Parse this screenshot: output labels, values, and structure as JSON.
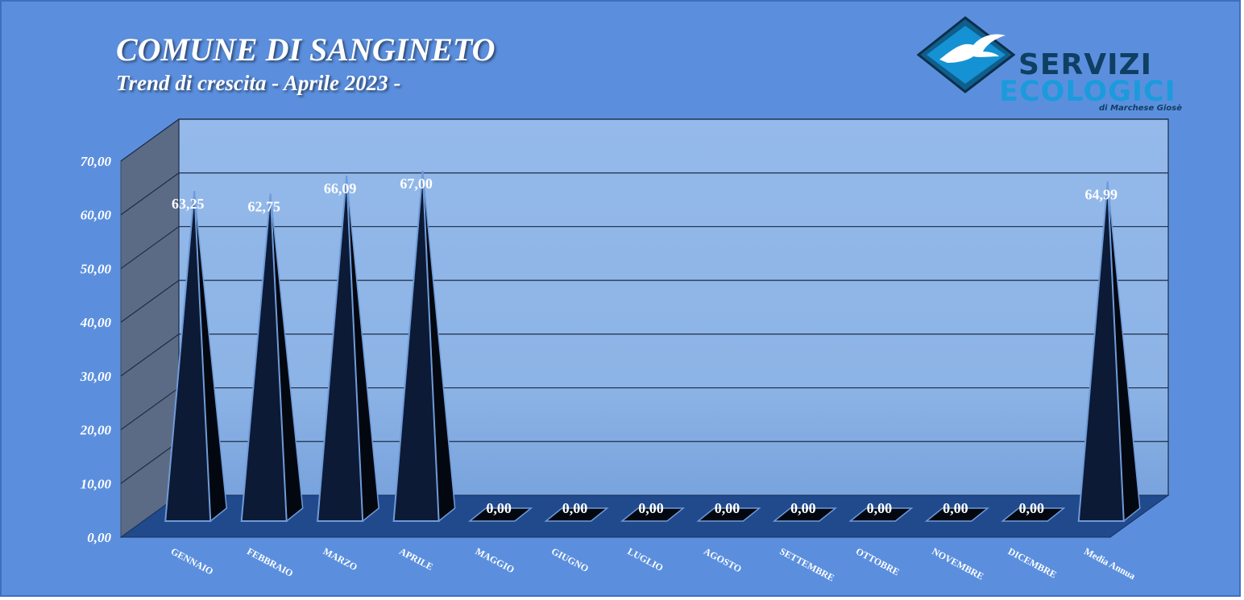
{
  "header": {
    "title": "COMUNE DI SANGINETO",
    "subtitle": "Trend di crescita - Aprile 2023 -"
  },
  "logo": {
    "word1": "SERVIZI",
    "word2": "ECOLOGICI",
    "tagline": "di Marchese Giosè",
    "icon": "seagull-diamond-icon"
  },
  "colors": {
    "background": "#5b8fde",
    "plot_back": "#8db4e6",
    "side_wall": "#5c6b85",
    "floor": "#214a8c",
    "bar_front": "#0c1a36",
    "bar_side": "#03070f",
    "bar_outline": "#6f9bd9",
    "text": "#ffffff"
  },
  "chart_data": {
    "type": "bar",
    "bar_shape": "3d-pyramid",
    "title": "COMUNE DI SANGINETO",
    "subtitle": "Trend di crescita - Aprile 2023 -",
    "categories": [
      "GENNAIO",
      "FEBBRAIO",
      "MARZO",
      "APRILE",
      "MAGGIO",
      "GIUGNO",
      "LUGLIO",
      "AGOSTO",
      "SETTEMBRE",
      "OTTOBRE",
      "NOVEMBRE",
      "DICEMBRE",
      "Media Annua"
    ],
    "values": [
      63.25,
      62.75,
      66.09,
      67.0,
      0,
      0,
      0,
      0,
      0,
      0,
      0,
      0,
      64.99
    ],
    "value_labels": [
      "63,25",
      "62,75",
      "66,09",
      "67,00",
      "0,00",
      "0,00",
      "0,00",
      "0,00",
      "0,00",
      "0,00",
      "0,00",
      "0,00",
      "64,99"
    ],
    "y_ticks": [
      0,
      10,
      20,
      30,
      40,
      50,
      60,
      70
    ],
    "y_tick_labels": [
      "0,00",
      "10,00",
      "20,00",
      "30,00",
      "40,00",
      "50,00",
      "60,00",
      "70,00"
    ],
    "ylim": [
      0,
      70
    ],
    "xlabel": "",
    "ylabel": "",
    "grid": true,
    "legend": false
  }
}
